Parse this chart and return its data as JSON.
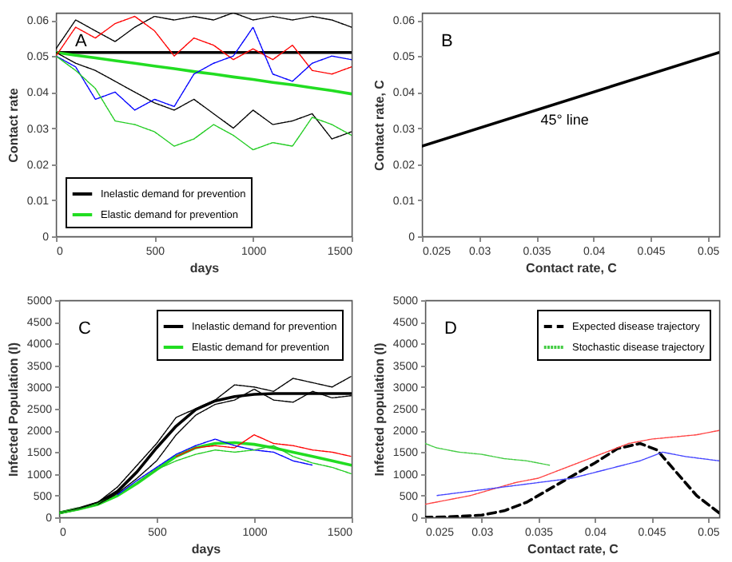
{
  "chart_data": [
    {
      "type": "line",
      "xlabel": "days",
      "ylabel": "Contact rate",
      "xlim": [
        0,
        1500
      ],
      "xticks": [
        0,
        500,
        1000,
        1500
      ],
      "ylim": [
        0,
        0.062
      ],
      "yticks": [
        0,
        0.01,
        0.02,
        0.03,
        0.04,
        0.05,
        0.06
      ],
      "legend": "bottom left",
      "annotations": [
        "A"
      ],
      "x": [
        0,
        100,
        200,
        300,
        400,
        500,
        600,
        700,
        800,
        900,
        1000,
        1100,
        1200,
        1300,
        1400,
        1500
      ],
      "series": [
        {
          "color": "#000000",
          "line_style": "dotted",
          "values": [
            0.052,
            0.06,
            0.057,
            0.054,
            0.058,
            0.061,
            0.06,
            0.061,
            0.06,
            0.062,
            0.06,
            0.061,
            0.06,
            0.061,
            0.06,
            0.058
          ]
        },
        {
          "color": "#000000",
          "line_style": "dotted",
          "values": [
            0.051,
            0.048,
            0.046,
            0.043,
            0.04,
            0.037,
            0.035,
            0.038,
            0.034,
            0.03,
            0.035,
            0.031,
            0.032,
            0.034,
            0.027,
            0.029
          ]
        },
        {
          "color": "#ff0000",
          "line_style": "dotted",
          "values": [
            0.05,
            0.058,
            0.055,
            0.059,
            0.061,
            0.057,
            0.05,
            0.055,
            0.053,
            0.049,
            0.052,
            0.049,
            0.053,
            0.046,
            0.045,
            0.047
          ]
        },
        {
          "color": "#0000ff",
          "line_style": "dotted",
          "values": [
            0.05,
            0.047,
            0.038,
            0.04,
            0.035,
            0.038,
            0.036,
            0.045,
            0.048,
            0.05,
            0.058,
            0.045,
            0.043,
            0.048,
            0.05,
            0.049
          ]
        },
        {
          "color": "#22cc22",
          "line_style": "dotted",
          "values": [
            0.05,
            0.046,
            0.041,
            0.032,
            0.031,
            0.029,
            0.025,
            0.027,
            0.031,
            0.028,
            0.024,
            0.026,
            0.025,
            0.033,
            0.031,
            0.028
          ]
        },
        {
          "name": "Inelastic demand for prevention",
          "color": "#000000",
          "line_style": "solid",
          "values": [
            0.051,
            0.051,
            0.051,
            0.051,
            0.051,
            0.051,
            0.051,
            0.051,
            0.051,
            0.051,
            0.051,
            0.051,
            0.051,
            0.051,
            0.051,
            0.051
          ]
        },
        {
          "name": "Elastic demand for prevention",
          "color": "#22dd22",
          "line_style": "solid",
          "values": [
            0.051,
            0.0502,
            0.0495,
            0.0487,
            0.048,
            0.0472,
            0.0465,
            0.0457,
            0.045,
            0.0442,
            0.0435,
            0.0427,
            0.042,
            0.0412,
            0.0404,
            0.0395
          ]
        }
      ]
    },
    {
      "type": "line",
      "xlabel": "Contact rate, C",
      "ylabel": "Contact rate, C",
      "xlim": [
        0.025,
        0.051
      ],
      "xticks": [
        0.025,
        0.03,
        0.035,
        0.04,
        0.045,
        0.05
      ],
      "ylim": [
        0,
        0.062
      ],
      "yticks": [
        0,
        0.01,
        0.02,
        0.03,
        0.04,
        0.05,
        0.06
      ],
      "annotations": [
        "B",
        "45° line"
      ],
      "x": [
        0.025,
        0.051
      ],
      "series": [
        {
          "color": "#000000",
          "line_style": "solid",
          "values": [
            0.025,
            0.051
          ]
        }
      ]
    },
    {
      "type": "line",
      "xlabel": "days",
      "ylabel": "Infected Population (I)",
      "xlim": [
        0,
        1500
      ],
      "xticks": [
        0,
        500,
        1000,
        1500
      ],
      "ylim": [
        0,
        5000
      ],
      "yticks": [
        0,
        500,
        1000,
        1500,
        2000,
        2500,
        3000,
        3500,
        4000,
        4500,
        5000
      ],
      "legend": "top right",
      "annotations": [
        "C"
      ],
      "x": [
        0,
        100,
        200,
        300,
        400,
        500,
        600,
        700,
        800,
        900,
        1000,
        1100,
        1200,
        1300,
        1400,
        1500
      ],
      "series": [
        {
          "color": "#000000",
          "line_style": "dotted",
          "values": [
            100,
            200,
            350,
            700,
            1200,
            1700,
            2300,
            2500,
            2700,
            3050,
            3000,
            2900,
            3200,
            3100,
            3000,
            3250
          ]
        },
        {
          "color": "#000000",
          "line_style": "dotted",
          "values": [
            100,
            190,
            300,
            550,
            900,
            1300,
            1900,
            2350,
            2600,
            2700,
            2950,
            2700,
            2650,
            2900,
            2750,
            2800
          ]
        },
        {
          "color": "#ff0000",
          "line_style": "dotted",
          "values": [
            null,
            null,
            null,
            null,
            null,
            null,
            1400,
            1600,
            1650,
            1600,
            1900,
            1700,
            1650,
            1550,
            1500,
            1400
          ]
        },
        {
          "color": "#0000ff",
          "line_style": "dotted",
          "values": [
            null,
            null,
            null,
            520,
            850,
            1150,
            1450,
            1650,
            1800,
            1650,
            1550,
            1500,
            1300,
            1200,
            null,
            null
          ]
        },
        {
          "color": "#22cc22",
          "line_style": "dotted",
          "values": [
            100,
            180,
            300,
            null,
            800,
            1100,
            1300,
            1450,
            1550,
            1500,
            1550,
            1650,
            1400,
            1250,
            1150,
            1000
          ]
        },
        {
          "name": "Inelastic demand for prevention",
          "color": "#000000",
          "line_style": "solid",
          "values": [
            100,
            200,
            330,
            600,
            1050,
            1600,
            2100,
            2480,
            2680,
            2780,
            2830,
            2850,
            2850,
            2850,
            2850,
            2850
          ]
        },
        {
          "name": "Elastic demand for prevention",
          "color": "#22dd22",
          "line_style": "solid",
          "values": [
            100,
            190,
            300,
            500,
            780,
            1100,
            1400,
            1600,
            1700,
            1720,
            1680,
            1600,
            1500,
            1400,
            1300,
            1200
          ]
        }
      ]
    },
    {
      "type": "line",
      "xlabel": "Contact rate, C",
      "ylabel": "Infected population (I)",
      "xlim": [
        0.025,
        0.051
      ],
      "xticks": [
        0.025,
        0.03,
        0.035,
        0.04,
        0.045,
        0.05
      ],
      "ylim": [
        0,
        5000
      ],
      "yticks": [
        0,
        500,
        1000,
        1500,
        2000,
        2500,
        3000,
        3500,
        4000,
        4500,
        5000
      ],
      "legend": "top right",
      "annotations": [
        "D"
      ],
      "series": [
        {
          "color": "#ff4444",
          "line_style": "dotted",
          "x": [
            0.051,
            0.049,
            0.047,
            0.045,
            0.043,
            0.041,
            0.039,
            0.037,
            0.035,
            0.033,
            0.031,
            0.029,
            0.027,
            0.025
          ],
          "values": [
            2000,
            1900,
            1850,
            1800,
            1700,
            1500,
            1300,
            1100,
            900,
            800,
            650,
            500,
            400,
            300
          ]
        },
        {
          "color": "#4444ff",
          "line_style": "dotted",
          "x": [
            0.051,
            0.048,
            0.046,
            0.044,
            0.041,
            0.038,
            0.035,
            0.032,
            0.029,
            0.026
          ],
          "values": [
            1300,
            1400,
            1500,
            1300,
            1100,
            900,
            800,
            700,
            600,
            500
          ]
        },
        {
          "name": "Expected disease trajectory",
          "color": "#000000",
          "line_style": "dashed",
          "x": [
            0.051,
            0.049,
            0.047,
            0.0455,
            0.044,
            0.042,
            0.04,
            0.038,
            0.036,
            0.034,
            0.032,
            0.03,
            0.027,
            0.025
          ],
          "values": [
            100,
            500,
            1100,
            1550,
            1700,
            1580,
            1250,
            950,
            650,
            350,
            150,
            50,
            10,
            0
          ]
        },
        {
          "name": "Stochastic disease trajectory",
          "color": "#44cc44",
          "line_style": "dotted",
          "x": [
            0.025,
            0.026,
            0.028,
            0.03,
            0.032,
            0.034,
            0.036
          ],
          "values": [
            1700,
            1600,
            1500,
            1450,
            1350,
            1300,
            1200
          ]
        }
      ]
    }
  ]
}
